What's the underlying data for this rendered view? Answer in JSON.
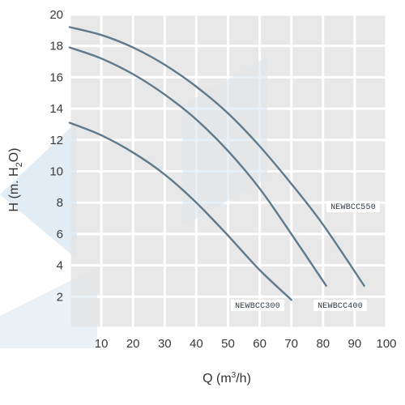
{
  "chart_data": {
    "type": "line",
    "xlabel_parts": {
      "main": "Q (m",
      "sup": "3",
      "tail": "/h)"
    },
    "ylabel_parts": {
      "main": "H (m. H",
      "sub": "2",
      "tail": "O)"
    },
    "xlim": [
      0,
      100
    ],
    "ylim": [
      0,
      20
    ],
    "x_ticks": [
      10,
      20,
      30,
      40,
      50,
      60,
      70,
      80,
      90,
      100
    ],
    "x_tick_labels": [
      "10",
      "20",
      "30",
      "40",
      "50",
      "60",
      "70",
      "80",
      "90",
      "100"
    ],
    "y_ticks": [
      2,
      4,
      6,
      8,
      10,
      12,
      14,
      16,
      18,
      20
    ],
    "y_tick_labels": [
      "2",
      "4",
      "6",
      "8",
      "10",
      "12",
      "14",
      "16",
      "18",
      "20"
    ],
    "grid": true,
    "series": [
      {
        "name": "NEWBCC300",
        "x": [
          0,
          10,
          20,
          30,
          40,
          50,
          60,
          70
        ],
        "y": [
          13.1,
          12.3,
          11.2,
          9.8,
          8.0,
          5.9,
          3.7,
          1.8
        ]
      },
      {
        "name": "NEWBCC400",
        "x": [
          0,
          10,
          20,
          30,
          40,
          50,
          60,
          70,
          81
        ],
        "y": [
          17.9,
          17.2,
          16.2,
          14.9,
          13.3,
          11.3,
          8.9,
          6.0,
          2.7
        ]
      },
      {
        "name": "NEWBCC550",
        "x": [
          0,
          10,
          20,
          30,
          40,
          50,
          60,
          70,
          80,
          93
        ],
        "y": [
          19.2,
          18.7,
          17.9,
          16.8,
          15.4,
          13.7,
          11.6,
          9.2,
          6.6,
          2.7
        ]
      }
    ],
    "colors": {
      "line": "#5f7a8c",
      "grid_cell": "#e4e4e4",
      "grid_gap": "#ffffff",
      "watermark": "#e1ecf5"
    }
  }
}
